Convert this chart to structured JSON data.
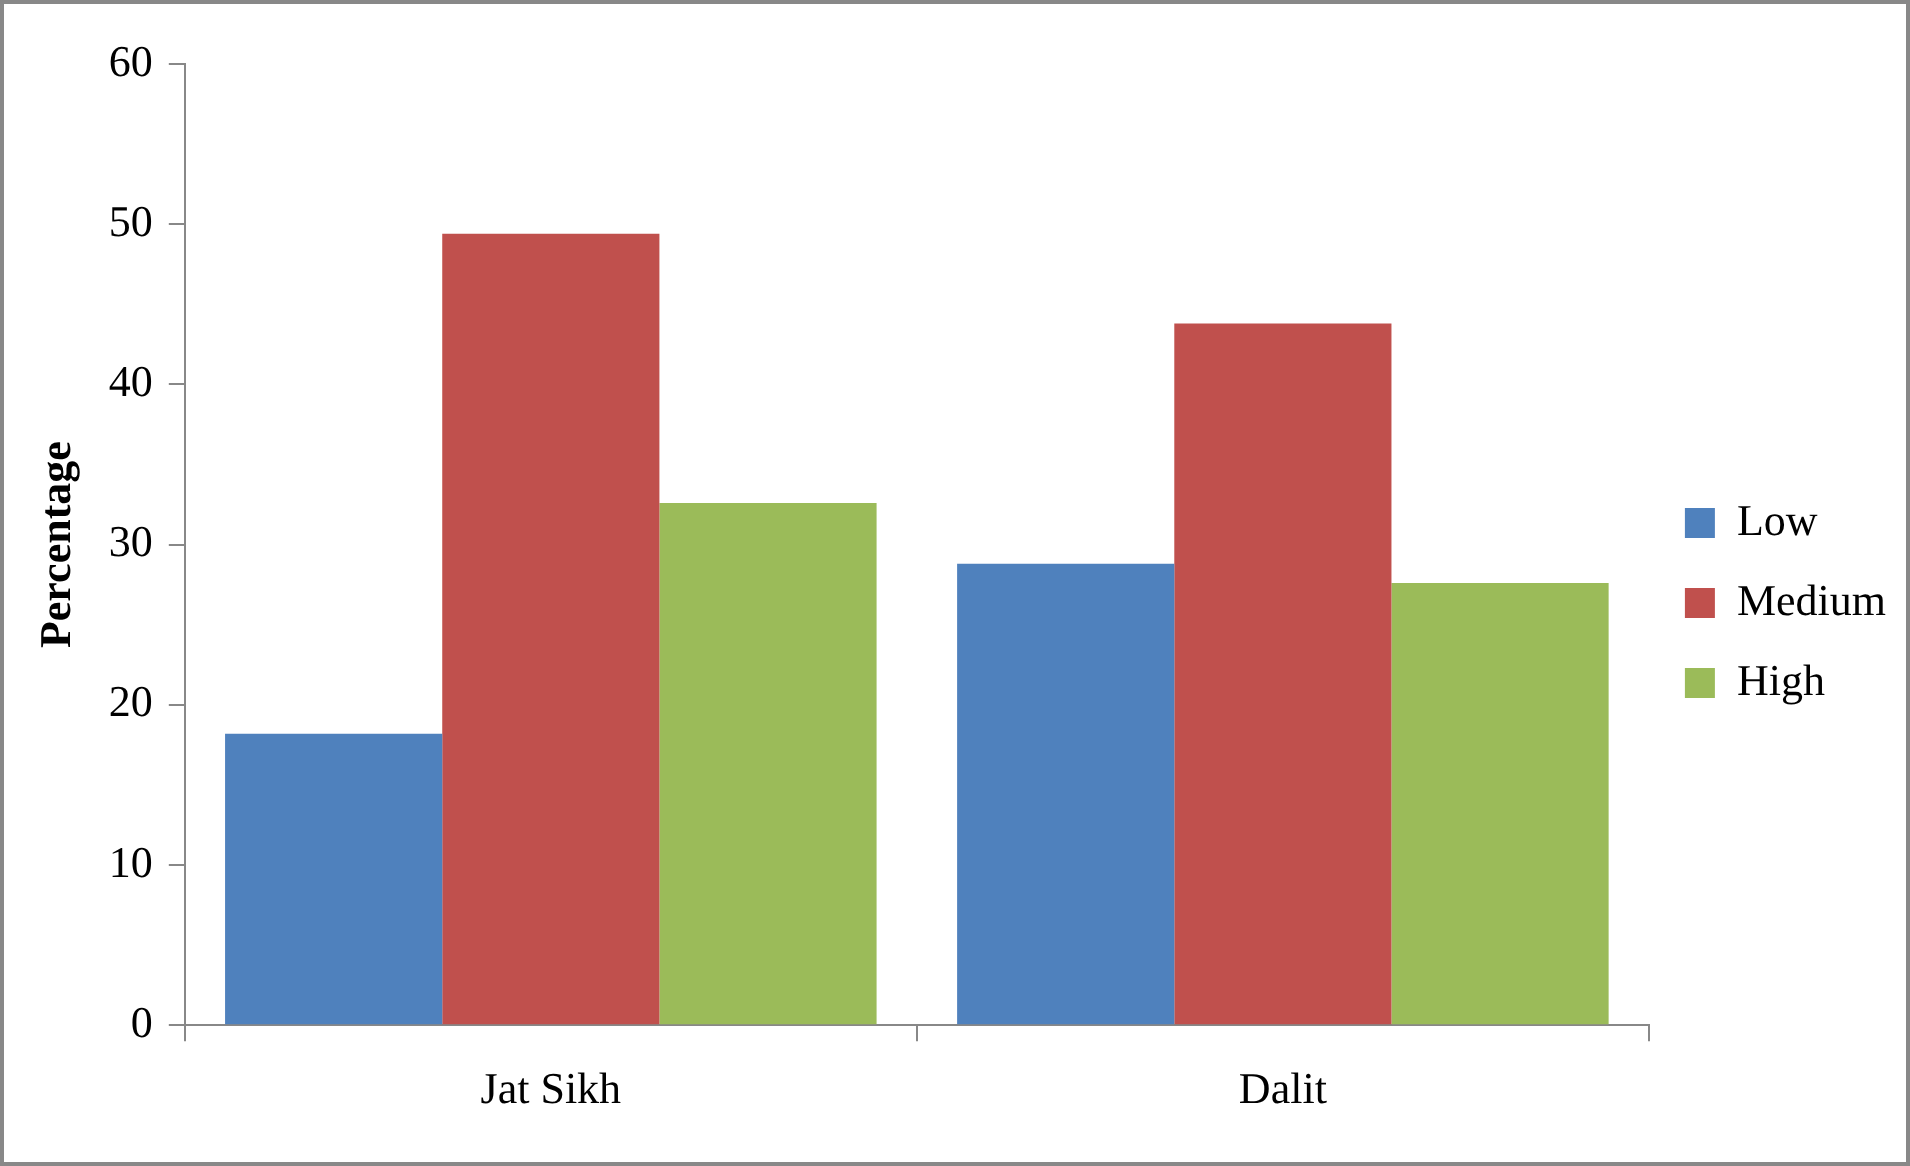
{
  "chart_data": {
    "type": "bar",
    "ylabel": "Percentage",
    "categories": [
      "Jat Sikh",
      "Dalit"
    ],
    "series": [
      {
        "name": "Low",
        "color": "#4f81bd",
        "values": [
          18.2,
          28.8
        ]
      },
      {
        "name": "Medium",
        "color": "#c0504d",
        "values": [
          49.4,
          43.8
        ]
      },
      {
        "name": "High",
        "color": "#9bbb59",
        "values": [
          32.6,
          27.6
        ]
      }
    ],
    "ylim": [
      0,
      60
    ],
    "yticks": [
      0,
      10,
      20,
      30,
      40,
      50,
      60
    ],
    "grid": false,
    "legend": "right"
  }
}
